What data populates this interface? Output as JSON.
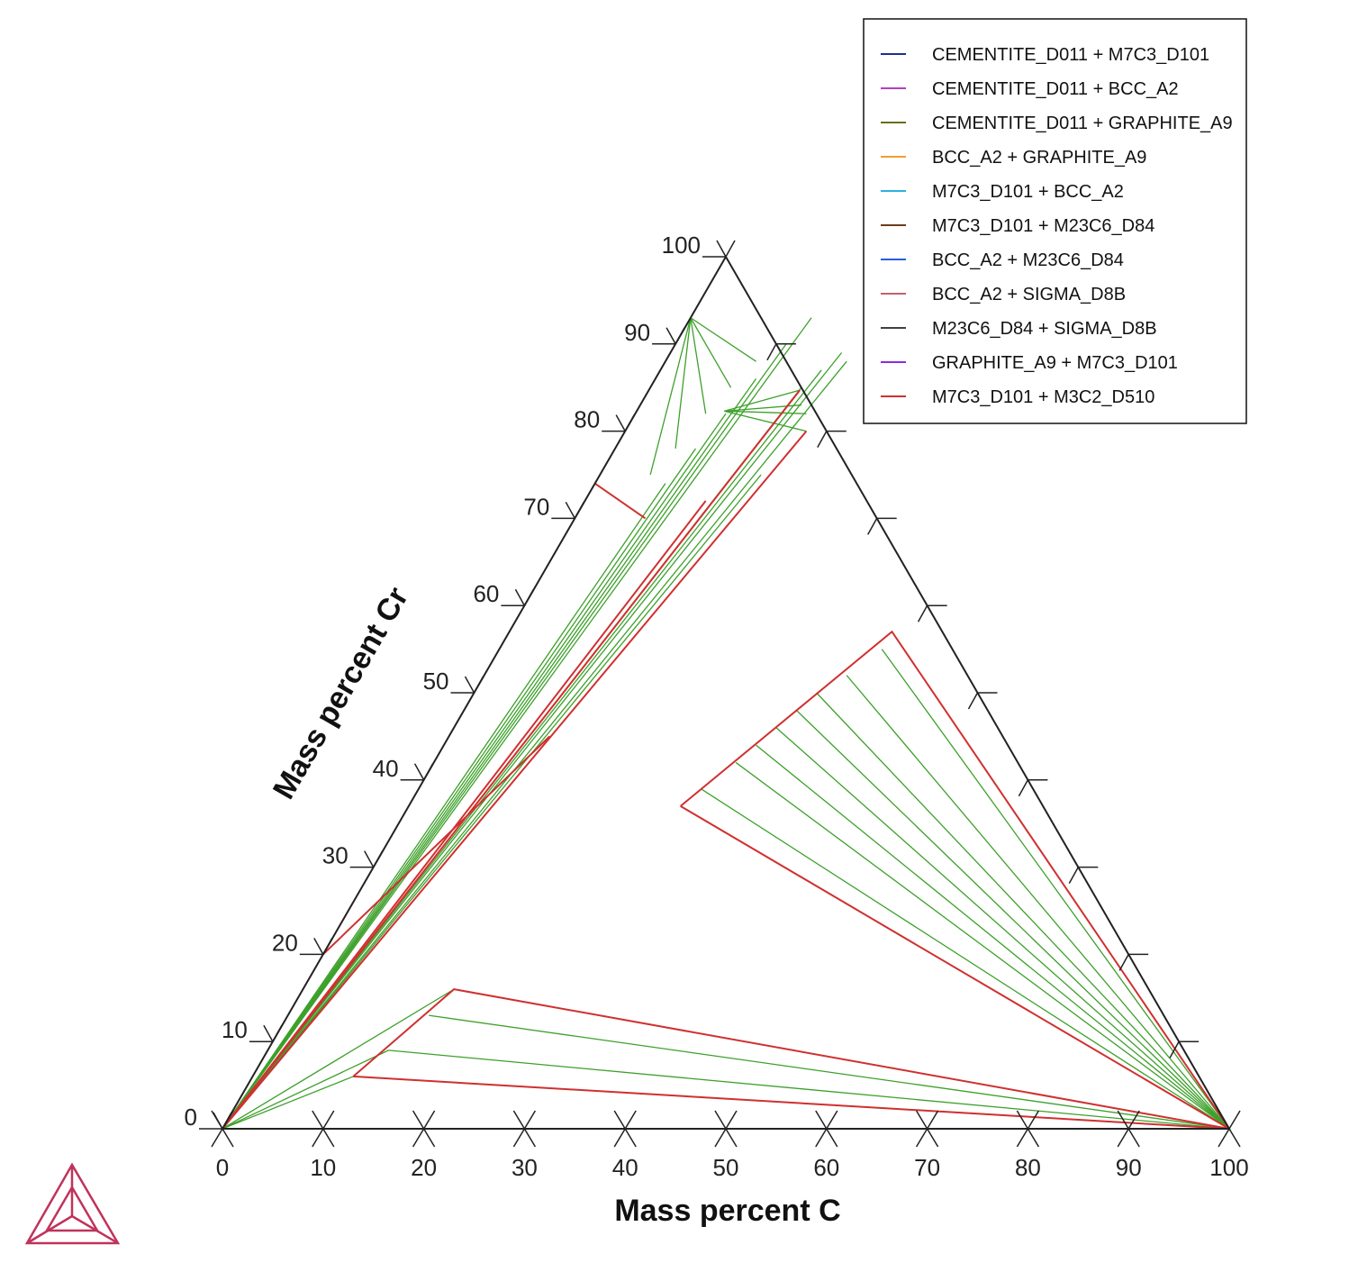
{
  "chart_data": {
    "type": "ternary",
    "xlabel": "Mass percent C",
    "ylabel": "Mass percent Cr",
    "x_ticks": [
      "0",
      "10",
      "20",
      "30",
      "40",
      "50",
      "60",
      "70",
      "80",
      "90",
      "100"
    ],
    "y_ticks": [
      "0",
      "10",
      "20",
      "30",
      "40",
      "50",
      "60",
      "70",
      "80",
      "90",
      "100"
    ],
    "x_range": [
      0,
      100
    ],
    "y_range": [
      0,
      100
    ],
    "legend_position": "top-right",
    "legend": [
      {
        "name": "CEMENTITE_D011 + M7C3_D101",
        "color": "#1f2f8c"
      },
      {
        "name": "CEMENTITE_D011 + BCC_A2",
        "color": "#b040c0"
      },
      {
        "name": "CEMENTITE_D011 + GRAPHITE_A9",
        "color": "#6b6b1a"
      },
      {
        "name": "BCC_A2 + GRAPHITE_A9",
        "color": "#f0a030"
      },
      {
        "name": "M7C3_D101 + BCC_A2",
        "color": "#30b0e0"
      },
      {
        "name": "M7C3_D101 + M23C6_D84",
        "color": "#6b3a1a"
      },
      {
        "name": "BCC_A2 + M23C6_D84",
        "color": "#2a5ce0"
      },
      {
        "name": "BCC_A2 + SIGMA_D8B",
        "color": "#c06070"
      },
      {
        "name": "M23C6_D84 + SIGMA_D8B",
        "color": "#404040"
      },
      {
        "name": "GRAPHITE_A9 + M7C3_D101",
        "color": "#8a2be2"
      },
      {
        "name": "M7C3_D101 + M3C2_D510",
        "color": "#d03030"
      }
    ],
    "tie_line_color": "#3da02a",
    "boundary_color": "#d03030",
    "fans": [
      {
        "from": [
          100,
          0
        ],
        "to": [
          [
            10,
            6
          ],
          [
            12,
            9
          ],
          [
            14,
            13
          ],
          [
            15,
            16
          ]
        ]
      },
      {
        "from": [
          100,
          0
        ],
        "to": [
          [
            27,
            37
          ],
          [
            28,
            39
          ],
          [
            30,
            42
          ],
          [
            31,
            44
          ],
          [
            32,
            46
          ],
          [
            33,
            48
          ],
          [
            34,
            50
          ],
          [
            36,
            52
          ],
          [
            38,
            55
          ]
        ]
      },
      {
        "from": [
          0,
          0
        ],
        "to": [
          [
            10,
            6
          ],
          [
            12,
            9
          ],
          [
            15,
            16
          ]
        ]
      },
      {
        "from": [
          0,
          0
        ],
        "to": [
          [
            7,
            74
          ],
          [
            8,
            78
          ],
          [
            9,
            82
          ],
          [
            10,
            86
          ],
          [
            11,
            90
          ],
          [
            12,
            93
          ],
          [
            14,
            79
          ],
          [
            16,
            75
          ]
        ]
      },
      {
        "from": [
          0,
          0
        ],
        "to": [
          [
            15,
            85
          ],
          [
            16,
            87
          ],
          [
            17,
            89
          ],
          [
            18,
            88
          ]
        ]
      },
      {
        "from": [
          0,
          93
        ],
        "to": [
          [
            5,
            75
          ],
          [
            6,
            78
          ],
          [
            7,
            82
          ],
          [
            8,
            85
          ],
          [
            9,
            88
          ]
        ]
      },
      {
        "from": [
          8.7,
          82.3
        ],
        "to": [
          [
            15,
            84.7
          ],
          [
            16,
            83
          ],
          [
            17,
            82
          ],
          [
            18,
            80
          ]
        ]
      }
    ],
    "boundaries": [
      [
        [
          0,
          0
        ],
        [
          0,
          100
        ]
      ],
      [
        [
          0,
          0
        ],
        [
          100,
          0
        ]
      ],
      [
        [
          0,
          100
        ],
        [
          100,
          0
        ]
      ],
      [
        [
          10,
          6
        ],
        [
          15,
          16
        ],
        [
          100,
          0
        ],
        [
          10,
          6
        ]
      ],
      [
        [
          27,
          37
        ],
        [
          38,
          57
        ],
        [
          100,
          0
        ],
        [
          27,
          37
        ]
      ],
      [
        [
          0,
          0
        ],
        [
          15,
          84.7
        ]
      ],
      [
        [
          0,
          0
        ],
        [
          18,
          80
        ]
      ],
      [
        [
          0,
          0
        ],
        [
          12,
          72
        ]
      ],
      [
        [
          0,
          20
        ],
        [
          10,
          45
        ]
      ],
      [
        [
          7,
          70
        ],
        [
          0,
          74
        ]
      ]
    ]
  }
}
